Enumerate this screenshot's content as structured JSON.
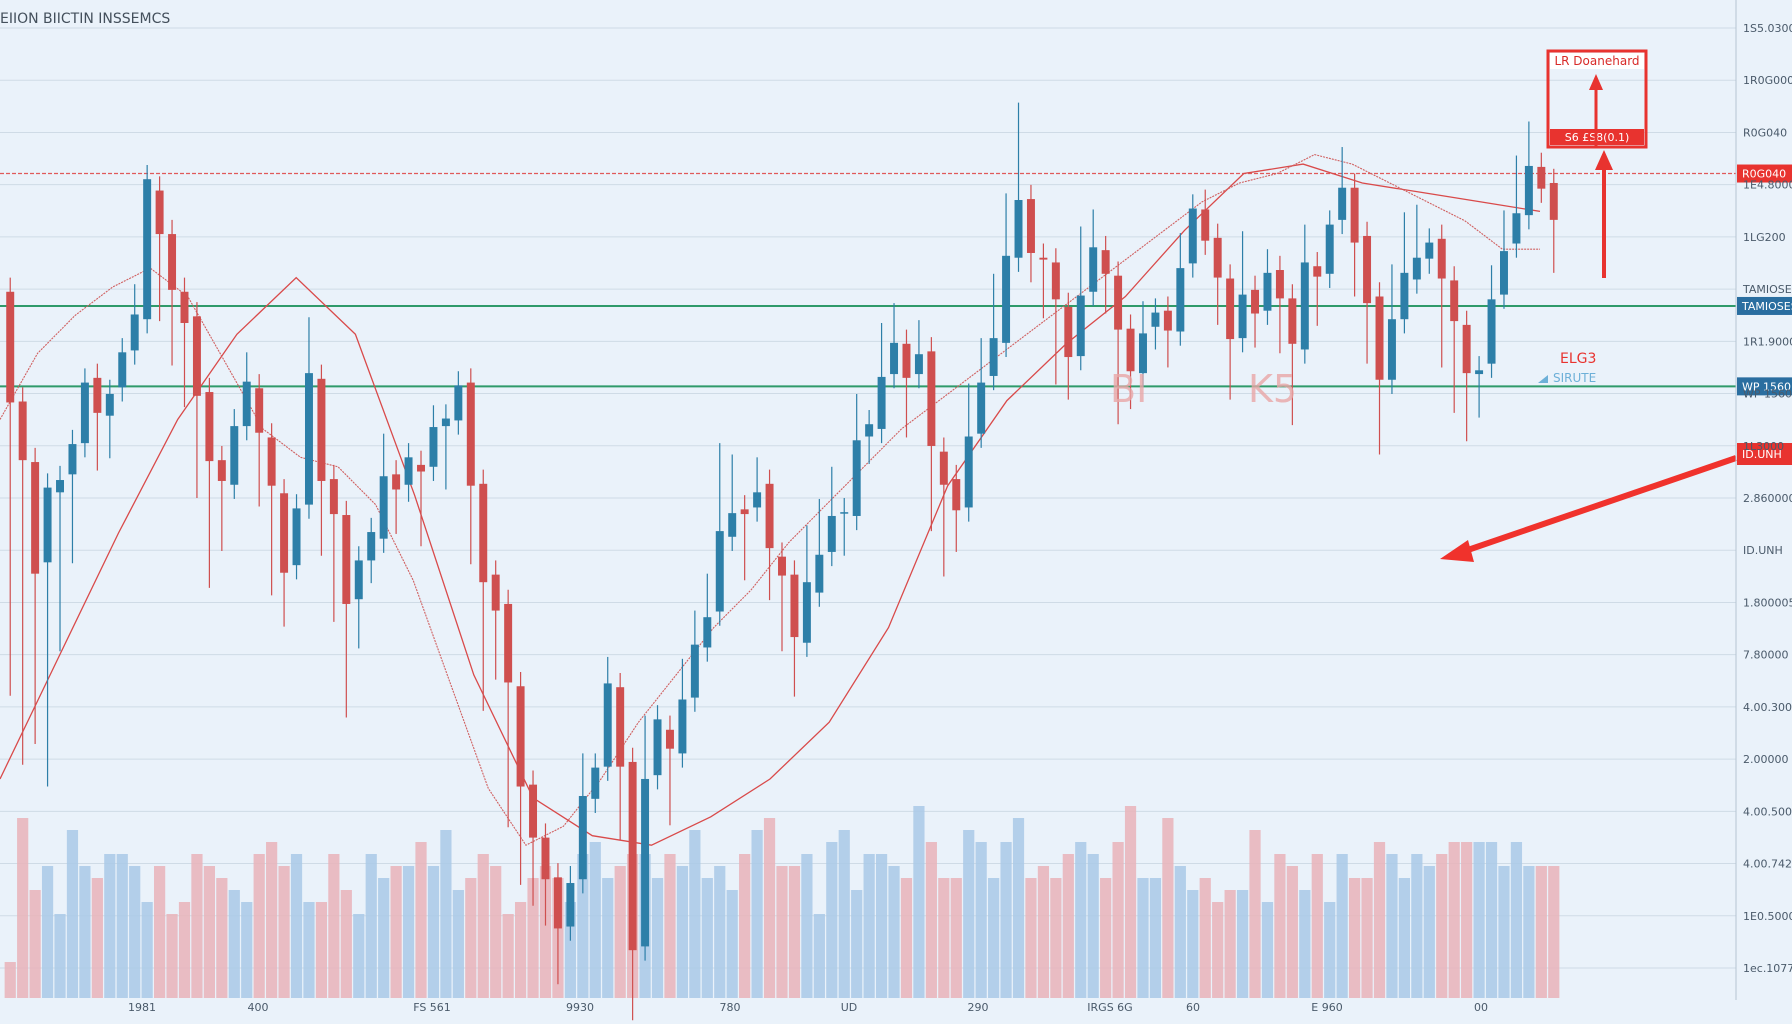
{
  "chart_data": {
    "type": "candlestick",
    "title": "ЕIION BIICTIN INSSEMCS",
    "x_tick_labels": [
      "1981",
      "400",
      "FS 561",
      "9930",
      "780",
      "UD",
      "290",
      "IRGS 6G",
      "60",
      "E 960",
      "00"
    ],
    "y_tick_labels": [
      "1S5.0300",
      "1R0G000",
      "R0G040",
      "1E4.8000",
      "1LG200",
      "TAMIOSES",
      "1R1.9000",
      "WP 1560",
      "1L3000",
      "2.860000",
      "ID.UNH",
      "1.800005",
      "7.80000",
      "4.00.3000",
      "2.00000",
      "4.00.5000",
      "4.00.7427",
      "1E0.5000",
      "1ec.1077"
    ],
    "ylim": [
      0,
      100
    ],
    "levels": [
      {
        "label": "R0G040",
        "value": 88,
        "color": "#e05a5a"
      },
      {
        "label": "TAMIOSES",
        "value": 74,
        "color": "#2f9a6a"
      },
      {
        "label": "WP 1560",
        "value": 65.5,
        "color": "#2f9a6a"
      }
    ],
    "annotations": {
      "box_title": "LR Doanehard",
      "box_sub": "S6 £S8(0.1)",
      "value_red": "ELG3",
      "value_blue": "SIRUTE",
      "arrow_label": "ID.UNH",
      "watermark": [
        "BI",
        "K5"
      ]
    },
    "candles": [
      [
        75.5,
        63.8,
        55.5,
        34.3
      ],
      [
        63.9,
        57.7,
        43.3,
        27.0
      ],
      [
        57.5,
        45.7,
        37.4,
        29.2
      ],
      [
        46.9,
        54.8,
        32.1,
        24.7
      ],
      [
        54.3,
        55.6,
        48.7,
        39.0
      ],
      [
        56.2,
        59.4,
        56.4,
        48.3
      ],
      [
        59.5,
        65.9,
        57.2,
        61.6
      ],
      [
        66.4,
        62.7,
        67.9,
        58.1
      ],
      [
        62.4,
        64.7,
        60.3,
        59.4
      ],
      [
        65.4,
        69.1,
        63.4,
        65.8
      ],
      [
        69.3,
        73.1,
        67.8,
        74.8
      ],
      [
        72.6,
        87.4,
        78.2,
        85.7
      ],
      [
        86.2,
        81.6,
        76.4,
        73.9
      ],
      [
        81.6,
        75.7,
        74.1,
        69.2
      ],
      [
        75.5,
        72.2,
        71.5,
        64.8
      ],
      [
        72.9,
        64.5,
        69.4,
        55.2
      ],
      [
        64.9,
        57.6,
        59.0,
        45.7
      ],
      [
        57.7,
        55.5,
        50.0,
        49.6
      ],
      [
        55.1,
        61.3,
        53.6,
        61.6
      ],
      [
        61.3,
        66.0,
        61.5,
        67.6
      ],
      [
        65.3,
        60.6,
        63.3,
        54.3
      ],
      [
        60.1,
        55.0,
        50.5,
        44.9
      ],
      [
        54.2,
        45.8,
        47.5,
        41.6
      ],
      [
        46.6,
        52.6,
        49.2,
        47.4
      ],
      [
        53.0,
        66.9,
        62.1,
        71.3
      ],
      [
        66.3,
        55.5,
        61.6,
        49.1
      ],
      [
        55.7,
        52.0,
        49.0,
        42.1
      ],
      [
        51.9,
        42.5,
        38.4,
        32.0
      ],
      [
        43.0,
        47.1,
        42.2,
        39.3
      ],
      [
        47.1,
        50.1,
        49.0,
        46.2
      ],
      [
        49.4,
        56.0,
        51.9,
        59.0
      ],
      [
        56.2,
        54.6,
        57.1,
        51.4
      ],
      [
        55.1,
        58.0,
        60.9,
        54.8
      ],
      [
        57.2,
        56.5,
        54.5,
        50.1
      ],
      [
        57.0,
        61.2,
        58.0,
        62.0
      ],
      [
        61.3,
        62.1,
        62.3,
        56.1
      ],
      [
        61.9,
        65.6,
        60.2,
        64.4
      ],
      [
        65.9,
        55.0,
        55.4,
        48.2
      ],
      [
        55.2,
        44.8,
        43.4,
        32.7
      ],
      [
        45.6,
        41.8,
        40.5,
        36.0
      ],
      [
        42.5,
        34.2,
        30.5,
        20.4
      ],
      [
        33.8,
        23.2,
        26.0,
        14.3
      ],
      [
        23.4,
        17.8,
        19.4,
        12.1
      ],
      [
        17.8,
        13.4,
        14.9,
        10.0
      ],
      [
        13.6,
        8.2,
        8.6,
        3.8
      ],
      [
        8.4,
        13.0,
        12.2,
        13.3
      ],
      [
        13.4,
        22.2,
        20.0,
        25.2
      ],
      [
        21.9,
        25.2,
        26.6,
        22.0
      ],
      [
        25.3,
        34.1,
        28.2,
        35.4
      ],
      [
        33.7,
        25.3,
        24.2,
        19.1
      ],
      [
        25.8,
        5.9,
        6.2,
        0.0
      ],
      [
        6.3,
        24.0,
        21.6,
        29.2
      ],
      [
        24.4,
        30.3,
        32.0,
        28.4
      ],
      [
        29.2,
        27.2,
        23.1,
        20.6
      ],
      [
        26.7,
        32.4,
        28.0,
        35.2
      ],
      [
        32.6,
        38.2,
        37.7,
        40.3
      ],
      [
        37.9,
        41.1,
        42.2,
        44.2
      ],
      [
        41.7,
        50.2,
        52.1,
        58.0
      ],
      [
        49.6,
        52.1,
        56.1,
        56.8
      ],
      [
        52.5,
        52.0,
        55.4,
        46.5
      ],
      [
        52.7,
        54.3,
        50.6,
        56.5
      ],
      [
        55.2,
        48.4,
        50.0,
        44.4
      ],
      [
        47.5,
        45.5,
        42.1,
        39.0
      ],
      [
        45.6,
        39.0,
        37.9,
        34.2
      ],
      [
        38.4,
        44.8,
        43.6,
        49.3
      ],
      [
        43.7,
        47.7,
        48.5,
        52.1
      ],
      [
        48.0,
        51.8,
        50.8,
        55.5
      ],
      [
        52.1,
        52.2,
        56.8,
        49.1
      ],
      [
        51.8,
        59.8,
        61.6,
        63.2
      ],
      [
        60.2,
        61.5,
        64.8,
        58.8
      ],
      [
        61.0,
        66.5,
        69.1,
        70.7
      ],
      [
        66.8,
        70.1,
        68.8,
        72.8
      ],
      [
        70.0,
        66.4,
        62.4,
        61.6
      ],
      [
        66.8,
        68.9,
        67.4,
        71.0
      ],
      [
        69.2,
        59.2,
        60.1,
        51.7
      ],
      [
        58.6,
        55.1,
        51.5,
        46.9
      ],
      [
        55.7,
        52.4,
        51.6,
        49.5
      ],
      [
        52.7,
        60.2,
        57.6,
        64.3
      ],
      [
        60.5,
        65.9,
        67.6,
        69.1
      ],
      [
        66.6,
        70.6,
        72.3,
        75.9
      ],
      [
        70.1,
        79.3,
        79.3,
        84.4
      ],
      [
        79.1,
        85.2,
        89.2,
        94.0
      ],
      [
        85.3,
        79.6,
        81.0,
        78.0
      ],
      [
        79.1,
        78.9,
        75.3,
        74.2
      ],
      [
        78.6,
        74.7,
        72.6,
        67.2
      ],
      [
        73.9,
        68.6,
        70.2,
        65.6
      ],
      [
        68.7,
        75.1,
        77.6,
        80.9
      ],
      [
        75.5,
        80.2,
        78.7,
        82.7
      ],
      [
        79.9,
        77.4,
        81.8,
        74.7
      ],
      [
        77.2,
        71.5,
        68.5,
        63.0
      ],
      [
        71.6,
        67.1,
        70.5,
        64.6
      ],
      [
        66.9,
        71.1,
        68.8,
        73.0
      ],
      [
        71.8,
        73.3,
        76.4,
        70.9
      ],
      [
        73.5,
        71.4,
        74.1,
        69.0
      ],
      [
        71.3,
        78.0,
        75.0,
        80.2
      ],
      [
        78.5,
        84.3,
        84.3,
        82.4
      ],
      [
        84.2,
        80.9,
        80.4,
        84.8
      ],
      [
        81.2,
        77.0,
        78.4,
        73.5
      ],
      [
        76.9,
        70.5,
        72.9,
        65.6
      ],
      [
        70.6,
        75.2,
        78.6,
        80.4
      ],
      [
        75.7,
        73.2,
        73.0,
        71.1
      ],
      [
        73.5,
        77.5,
        79.0,
        78.5
      ],
      [
        77.8,
        74.8,
        77.8,
        70.5
      ],
      [
        74.8,
        70.0,
        66.7,
        62.9
      ],
      [
        69.4,
        78.6,
        73.0,
        81.1
      ],
      [
        78.2,
        77.1,
        81.8,
        73.4
      ],
      [
        77.4,
        82.6,
        78.5,
        80.7
      ],
      [
        83.1,
        86.5,
        85.7,
        89.3
      ],
      [
        86.5,
        80.7,
        80.7,
        76.5
      ],
      [
        81.4,
        74.3,
        74.3,
        69.4
      ],
      [
        75.0,
        66.2,
        63.0,
        59.8
      ],
      [
        66.2,
        72.6,
        73.4,
        76.9
      ],
      [
        72.6,
        77.5,
        81.0,
        82.4
      ],
      [
        76.8,
        79.1,
        79.7,
        83.2
      ],
      [
        79.0,
        80.7,
        81.6,
        78.9
      ],
      [
        81.1,
        76.9,
        73.3,
        69.0
      ],
      [
        76.7,
        72.4,
        72.1,
        64.2
      ],
      [
        72.0,
        66.9,
        64.9,
        61.2
      ],
      [
        66.8,
        67.2,
        65.6,
        63.7
      ],
      [
        67.9,
        74.7,
        74.9,
        76.8
      ],
      [
        75.2,
        79.8,
        78.5,
        82.6
      ],
      [
        80.6,
        83.8,
        82.2,
        88.4
      ],
      [
        83.6,
        88.8,
        85.3,
        92.0
      ],
      [
        88.7,
        86.4,
        85.3,
        86.7
      ],
      [
        87.0,
        83.1,
        84.8,
        79.0
      ]
    ],
    "volume": [
      3,
      15,
      9,
      11,
      7,
      14,
      11,
      10,
      12,
      12,
      11,
      8,
      11,
      7,
      8,
      12,
      11,
      10,
      9,
      8,
      12,
      13,
      11,
      12,
      8,
      8,
      12,
      9,
      7,
      12,
      10,
      11,
      11,
      13,
      11,
      14,
      9,
      10,
      12,
      11,
      7,
      8,
      10,
      11,
      10,
      8,
      12,
      13,
      10,
      11,
      12,
      12,
      10,
      12,
      11,
      14,
      10,
      11,
      9,
      12,
      14,
      15,
      11,
      11,
      12,
      7,
      13,
      14,
      9,
      12,
      12,
      11,
      10,
      16,
      13,
      10,
      10,
      14,
      13,
      10,
      13,
      15,
      10,
      11,
      10,
      12,
      13,
      12,
      10,
      13,
      16,
      10,
      10,
      15,
      11,
      9,
      10,
      8,
      9,
      9,
      14,
      8,
      12,
      11,
      9,
      12,
      8,
      12,
      10,
      10,
      13,
      12,
      10,
      12,
      11,
      12,
      13,
      13,
      13,
      13,
      11,
      13,
      11,
      11,
      11
    ],
    "ma_red": [
      62,
      69,
      73,
      76,
      78,
      75,
      68,
      61,
      58,
      57,
      53,
      45,
      34,
      23,
      17,
      19,
      24,
      30,
      35,
      40,
      44,
      49,
      53,
      57,
      61,
      64,
      67,
      70,
      73,
      76,
      79,
      82,
      85,
      87,
      88,
      90,
      89,
      87,
      85,
      83,
      80,
      80
    ],
    "ma_long": [
      24,
      37,
      50,
      62,
      71,
      77,
      71,
      54,
      35,
      22,
      18,
      17,
      20,
      24,
      30,
      40,
      55,
      64,
      70,
      75,
      82,
      88,
      89,
      87,
      86,
      85,
      84
    ]
  }
}
